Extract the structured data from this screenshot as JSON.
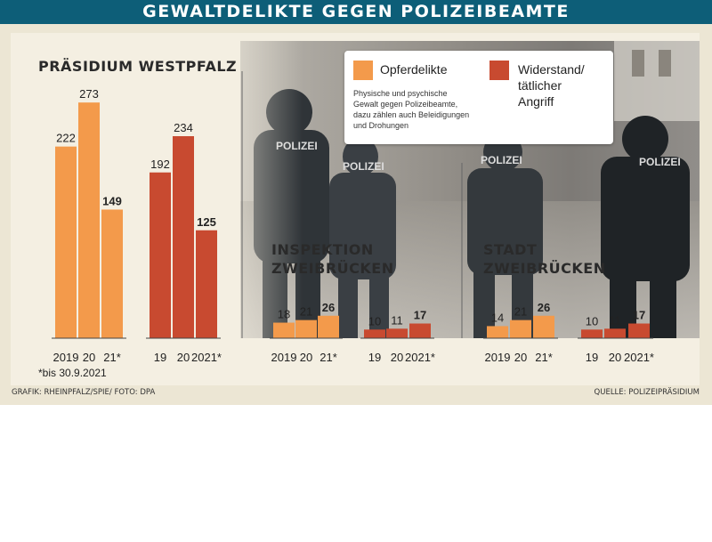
{
  "header": {
    "title": "GEWALTDELIKTE GEGEN POLIZEIBEAMTE"
  },
  "legend": {
    "opfer_label": "Opferdelikte",
    "opfer_desc": [
      "Physische und psychische",
      "Gewalt gegen Polizeibeamte,",
      "dazu zählen auch Beleidigungen",
      "und Drohungen"
    ],
    "widerstand_label": [
      "Widerstand/",
      "tätlicher",
      "Angriff"
    ]
  },
  "colors": {
    "opfer": "#f39a4b",
    "widerstand": "#c84a30",
    "header": "#0d5e78"
  },
  "photo_text": {
    "badge": "POLIZEI"
  },
  "footnote": "*bis 30.9.2021",
  "footer": {
    "left": "GRAFIK: RHEINPFALZ/SPIE/ FOTO: DPA",
    "right": "QUELLE: POLIZEIPRÄSIDIUM"
  },
  "chart_data": [
    {
      "type": "bar",
      "title": "PRÄSIDIUM WESTPFALZ",
      "series": [
        {
          "name": "Opferdelikte",
          "categories": [
            "2019",
            "20",
            "21*"
          ],
          "values": [
            222,
            273,
            149
          ],
          "bold": [
            false,
            false,
            true
          ]
        },
        {
          "name": "Widerstand/tätlicher Angriff",
          "categories": [
            "19",
            "20",
            "2021*"
          ],
          "values": [
            192,
            234,
            125
          ],
          "bold": [
            false,
            false,
            true
          ]
        }
      ]
    },
    {
      "type": "bar",
      "title": [
        "INSPEKTION",
        "ZWEIBRÜCKEN"
      ],
      "series": [
        {
          "name": "Opferdelikte",
          "categories": [
            "2019",
            "20",
            "21*"
          ],
          "values": [
            18,
            21,
            26
          ],
          "bold": [
            false,
            false,
            true
          ]
        },
        {
          "name": "Widerstand/tätlicher Angriff",
          "categories": [
            "19",
            "20",
            "2021*"
          ],
          "values": [
            10,
            11,
            17
          ],
          "bold": [
            false,
            false,
            true
          ]
        }
      ]
    },
    {
      "type": "bar",
      "title": [
        "STADT",
        "ZWEIBRÜCKEN"
      ],
      "series": [
        {
          "name": "Opferdelikte",
          "categories": [
            "2019",
            "20",
            "21*"
          ],
          "values": [
            14,
            21,
            26
          ],
          "bold": [
            false,
            false,
            true
          ]
        },
        {
          "name": "Widerstand/tätlicher Angriff",
          "categories": [
            "19",
            "20",
            "2021*"
          ],
          "values": [
            10,
            11,
            17
          ],
          "bold": [
            false,
            false,
            true
          ]
        }
      ]
    }
  ]
}
